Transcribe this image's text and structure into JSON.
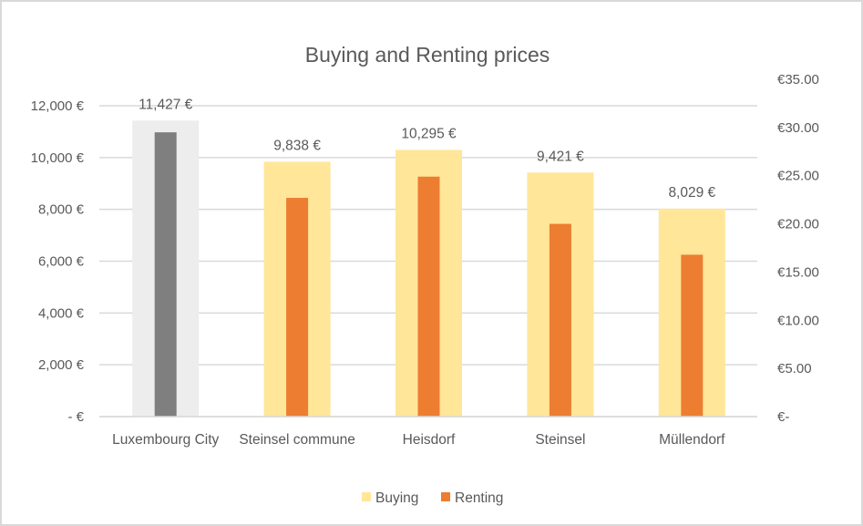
{
  "chart_data": {
    "type": "bar",
    "title": "Buying and Renting prices",
    "categories": [
      "Luxembourg City",
      "Steinsel commune",
      "Heisdorf",
      "Steinsel",
      "Müllendorf"
    ],
    "series": [
      {
        "name": "Buying",
        "axis": "left",
        "color": "#FFE699",
        "values": [
          11427,
          9838,
          10295,
          9421,
          8029
        ],
        "data_labels": [
          "11,427 €",
          "9,838 €",
          "10,295 €",
          "9,421 €",
          "8,029 €"
        ]
      },
      {
        "name": "Renting",
        "axis": "right",
        "color": "#ED7D31",
        "values": [
          29.5,
          22.7,
          24.9,
          20.0,
          16.8
        ]
      }
    ],
    "highlight": {
      "category_index": 0,
      "buying_color": "#EDEDED",
      "renting_color": "#7F7F7F"
    },
    "left_axis": {
      "ylim": [
        0,
        12000
      ],
      "ticks": [
        0,
        2000,
        4000,
        6000,
        8000,
        10000,
        12000
      ],
      "tick_labels": [
        "-   €",
        "2,000 €",
        "4,000 €",
        "6,000 €",
        "8,000 €",
        "10,000 €",
        "12,000 €"
      ]
    },
    "right_axis": {
      "ylim": [
        0,
        35
      ],
      "ticks": [
        0,
        5,
        10,
        15,
        20,
        25,
        30,
        35
      ],
      "tick_labels": [
        "€-",
        "€5.00",
        "€10.00",
        "€15.00",
        "€20.00",
        "€25.00",
        "€30.00",
        "€35.00"
      ]
    },
    "xlabel": "",
    "ylabel": "",
    "grid": true,
    "legend_position": "bottom",
    "colors": {
      "gridline": "#D9D9D9",
      "text": "#595959",
      "border": "#D9D9D9"
    }
  }
}
